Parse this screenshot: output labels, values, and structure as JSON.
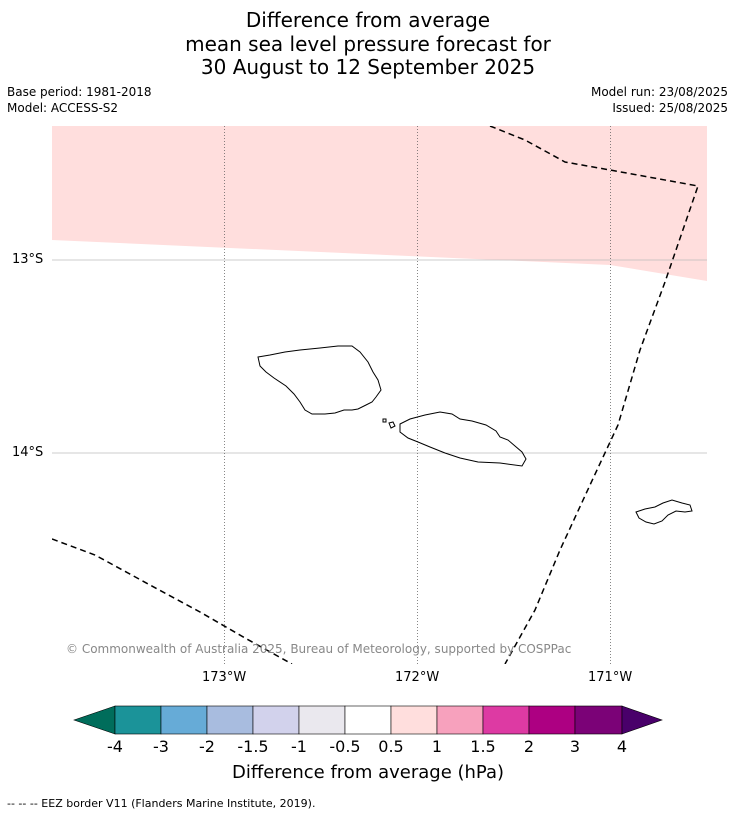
{
  "title": {
    "line1": "Difference from average",
    "line2": "mean sea level pressure forecast for",
    "line3": "30 August to 12 September 2025"
  },
  "meta": {
    "base_period": "Base period: 1981-2018",
    "model": "Model: ACCESS-S2",
    "model_run": "Model run: 23/08/2025",
    "issued": "Issued: 25/08/2025"
  },
  "map": {
    "lat_labels": [
      "13°S",
      "14°S"
    ],
    "lon_labels": [
      "173°W",
      "172°W",
      "171°W"
    ],
    "anomaly_fill_color": "#ffdedd",
    "anomaly_category": "0.5 to 1",
    "eez_line_color": "#000000",
    "copyright": "© Commonwealth of Australia 2025, Bureau of Meteorology, supported by COSPPac"
  },
  "colorbar": {
    "tick_labels": [
      "-4",
      "-3",
      "-2",
      "-1.5",
      "-1",
      "-0.5",
      "0.5",
      "1",
      "1.5",
      "2",
      "3",
      "4"
    ],
    "colors": [
      "#006d5b",
      "#1b9399",
      "#66abd7",
      "#a8bcdf",
      "#d2d2ec",
      "#eae8ee",
      "#ffffff",
      "#ffdedd",
      "#f7a1bd",
      "#dd3aa3",
      "#ad0082",
      "#7b0277",
      "#49006a"
    ],
    "title": "Difference from average (hPa)"
  },
  "footer": {
    "legend": "--  --  -- EEZ border V11 (Flanders Marine Institute, 2019)."
  }
}
